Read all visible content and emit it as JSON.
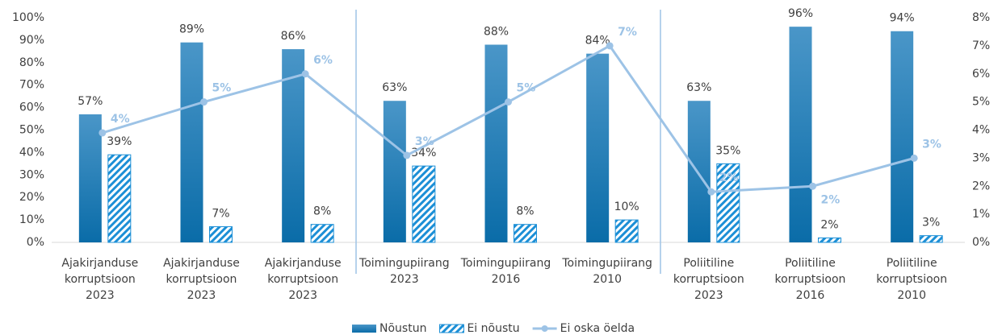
{
  "chart_data": {
    "type": "bar",
    "categories": [
      [
        "Ajakirjanduse",
        "korruptsioon",
        "2023"
      ],
      [
        "Ajakirjanduse",
        "korruptsioon",
        "2023"
      ],
      [
        "Ajakirjanduse",
        "korruptsioon",
        "2023"
      ],
      [
        "Toimingupiirang",
        "2023"
      ],
      [
        "Toimingupiirang",
        "2016"
      ],
      [
        "Toimingupiirang",
        "2010"
      ],
      [
        "Poliitiline",
        "korruptsioon",
        "2023"
      ],
      [
        "Poliitiline",
        "korruptsioon",
        "2016"
      ],
      [
        "Poliitiline",
        "korruptsioon",
        "2010"
      ]
    ],
    "series": [
      {
        "name": "Nõustun",
        "type": "bar",
        "color": "#1378b4",
        "values": [
          57,
          89,
          86,
          63,
          88,
          84,
          63,
          96,
          94
        ],
        "value_labels": [
          "57%",
          "89%",
          "86%",
          "63%",
          "88%",
          "84%",
          "63%",
          "96%",
          "94%"
        ]
      },
      {
        "name": "Ei nõustu",
        "type": "hatched-bar",
        "color": "#1c8fd6",
        "values": [
          39,
          7,
          8,
          34,
          8,
          10,
          35,
          2,
          3
        ],
        "value_labels": [
          "39%",
          "7%",
          "8%",
          "34%",
          "8%",
          "10%",
          "35%",
          "2%",
          "3%"
        ]
      },
      {
        "name": "Ei oska öelda",
        "type": "line",
        "axis": "y2",
        "color": "#9dc3e6",
        "values": [
          3.9,
          5,
          6,
          3.1,
          5,
          7,
          1.8,
          2,
          3
        ],
        "value_labels": [
          "4%",
          "5%",
          "6%",
          "3%",
          "5%",
          "7%",
          "2%",
          "2%",
          "3%"
        ]
      }
    ],
    "ylim": [
      0,
      100
    ],
    "yticks": [
      {
        "value": 0,
        "label": "0%"
      },
      {
        "value": 10,
        "label": "10%"
      },
      {
        "value": 20,
        "label": "20%"
      },
      {
        "value": 30,
        "label": "30%"
      },
      {
        "value": 40,
        "label": "40%"
      },
      {
        "value": 50,
        "label": "50%"
      },
      {
        "value": 60,
        "label": "60%"
      },
      {
        "value": 70,
        "label": "70%"
      },
      {
        "value": 80,
        "label": "80%"
      },
      {
        "value": 90,
        "label": "90%"
      },
      {
        "value": 100,
        "label": "100%"
      }
    ],
    "y2lim": [
      0,
      8
    ],
    "y2ticks": [
      {
        "value": 0,
        "label": "0%"
      },
      {
        "value": 1,
        "label": "1%"
      },
      {
        "value": 2,
        "label": "2%"
      },
      {
        "value": 3,
        "label": "3%"
      },
      {
        "value": 4,
        "label": "4%"
      },
      {
        "value": 5,
        "label": "5%"
      },
      {
        "value": 6,
        "label": "6%"
      },
      {
        "value": 7,
        "label": "7%"
      },
      {
        "value": 8,
        "label": "8%"
      }
    ],
    "legend": "bottom"
  }
}
